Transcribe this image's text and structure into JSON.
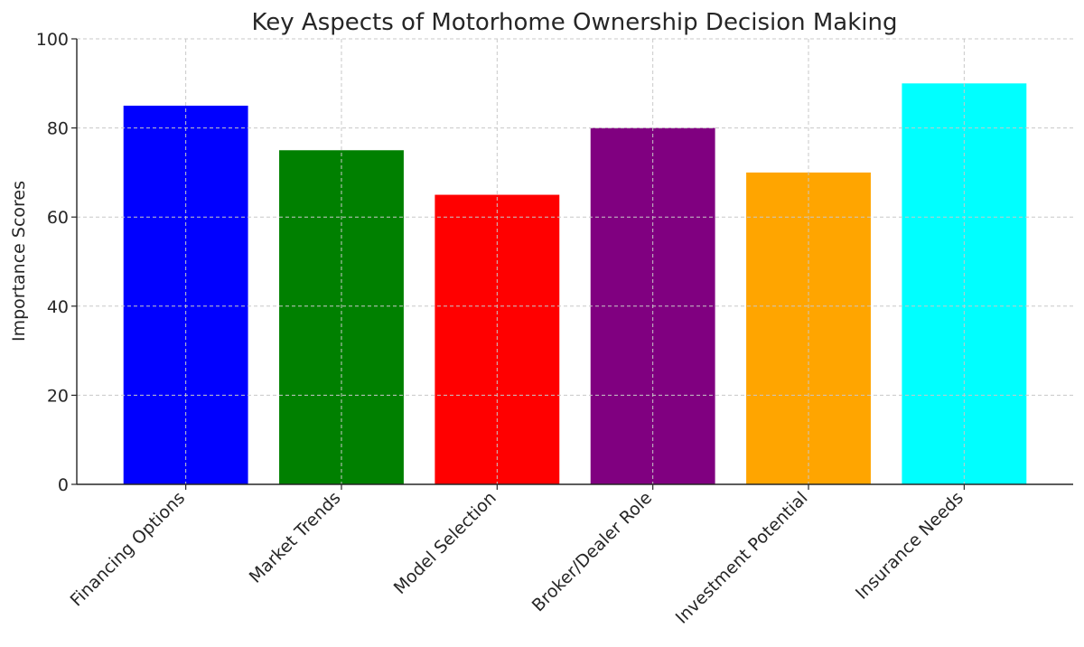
{
  "chart_data": {
    "type": "bar",
    "title": "Key Aspects of Motorhome Ownership Decision Making",
    "xlabel": "",
    "ylabel": "Importance Scores",
    "categories": [
      "Financing Options",
      "Market Trends",
      "Model Selection",
      "Broker/Dealer Role",
      "Investment Potential",
      "Insurance Needs"
    ],
    "values": [
      85,
      75,
      65,
      80,
      70,
      90
    ],
    "colors": [
      "#0000ff",
      "#008000",
      "#ff0000",
      "#800080",
      "#ffa500",
      "#00ffff"
    ],
    "ylim": [
      0,
      100
    ],
    "yticks": [
      0,
      20,
      40,
      60,
      80,
      100
    ],
    "grid": true,
    "legend": "none"
  }
}
